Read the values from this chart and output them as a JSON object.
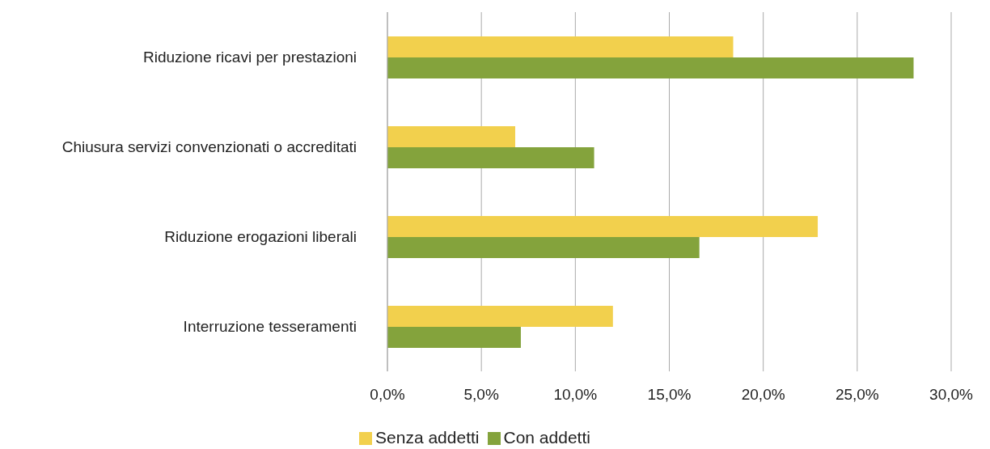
{
  "chart_data": {
    "type": "bar",
    "orientation": "horizontal",
    "categories": [
      "Riduzione ricavi per prestazioni",
      "Chiusura servizi convenzionati o accreditati",
      "Riduzione erogazioni liberali",
      "Interruzione tesseramenti"
    ],
    "series": [
      {
        "name": "Senza addetti",
        "color": "#f2d04d",
        "values": [
          18.4,
          6.8,
          22.9,
          12.0
        ]
      },
      {
        "name": "Con addetti",
        "color": "#84a33c",
        "values": [
          28.0,
          11.0,
          16.6,
          7.1
        ]
      }
    ],
    "xlim": [
      0,
      30
    ],
    "xticks": [
      {
        "value": 0,
        "label": "0,0%"
      },
      {
        "value": 5,
        "label": "5,0%"
      },
      {
        "value": 10,
        "label": "10,0%"
      },
      {
        "value": 15,
        "label": "15,0%"
      },
      {
        "value": 20,
        "label": "20,0%"
      },
      {
        "value": 25,
        "label": "25,0%"
      },
      {
        "value": 30,
        "label": "30,0%"
      }
    ],
    "grid": "x",
    "legend": "bottom"
  }
}
